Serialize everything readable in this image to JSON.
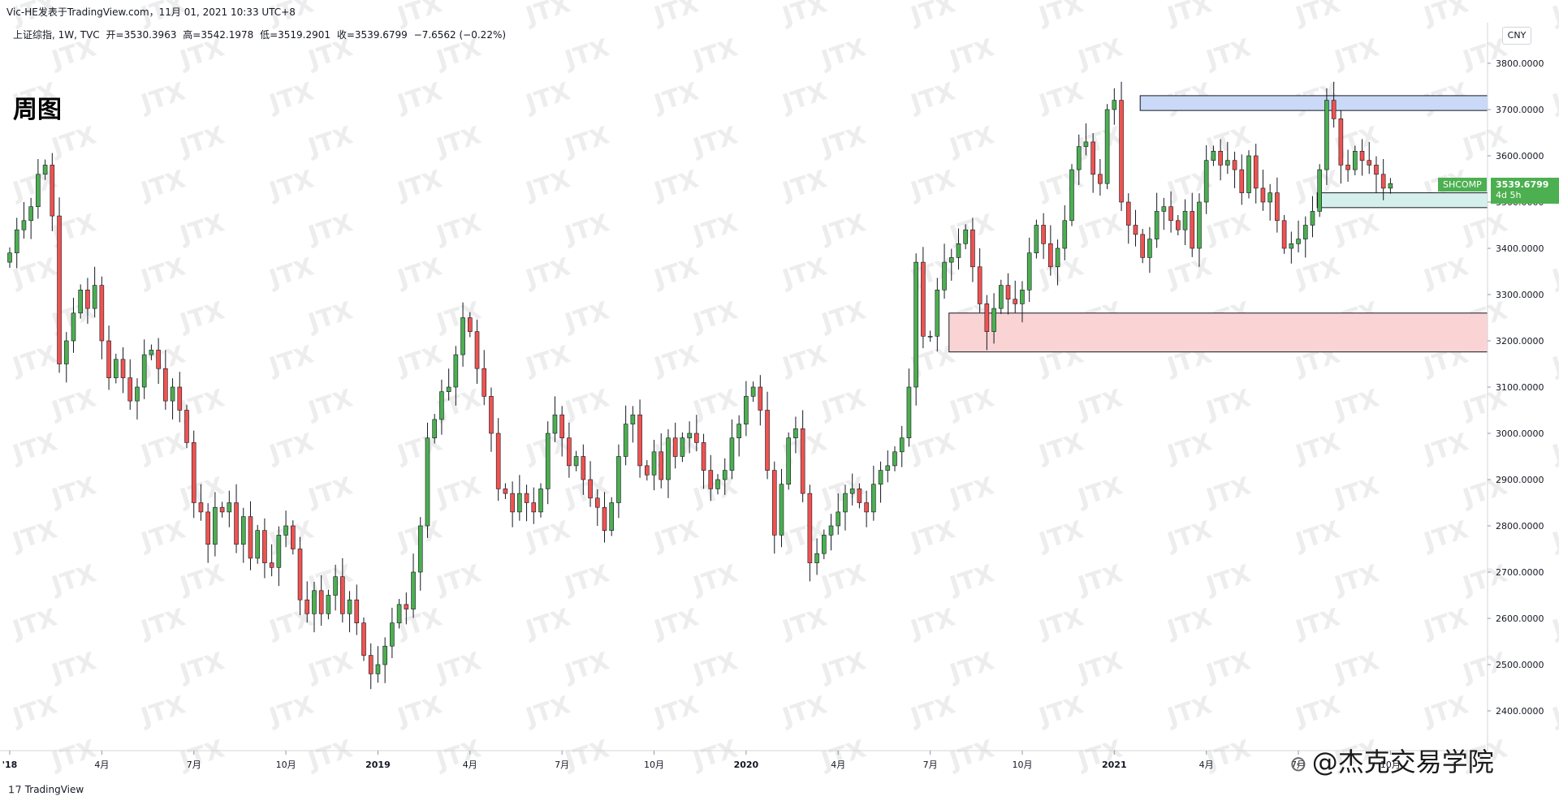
{
  "header": {
    "publisher": "Vic-HE发表于TradingView.com，11月 01, 2021 10:33 UTC+8"
  },
  "legend": {
    "symbol": "上证综指, 1W, TVC",
    "open": "开=3530.3963",
    "high": "高=3542.1978",
    "low": "低=3519.2901",
    "close": "收=3539.6799",
    "change": "−7.6562 (−0.22%)"
  },
  "title": "周图",
  "currency": "CNY",
  "symbol_tag": "SHCOMP",
  "price_tag": {
    "price": "3539.6799",
    "countdown": "4d 5h"
  },
  "branding": {
    "tv": "TradingView",
    "credit": "@杰克交易学院",
    "watermark": "JTX"
  },
  "colors": {
    "up": "#4caf50",
    "down": "#ef5350",
    "wick": "#131722",
    "supply_zone": "#c9d9f7",
    "demand_zone": "#fad4d4",
    "support_zone": "#d5f0ec"
  },
  "chart_data": {
    "type": "candlestick",
    "timeframe": "1W",
    "ylim": [
      2290,
      3860
    ],
    "y_ticks": [
      2400,
      2500,
      2600,
      2700,
      2800,
      2900,
      3000,
      3100,
      3200,
      3300,
      3400,
      3500,
      3600,
      3700,
      3800
    ],
    "y_tick_labels": [
      "2400.0000",
      "2500.0000",
      "2600.0000",
      "2700.0000",
      "2800.0000",
      "2900.0000",
      "3000.0000",
      "3100.0000",
      "3200.0000",
      "3300.0000",
      "3400.0000",
      "3500.0000",
      "3600.0000",
      "3700.0000",
      "3800.0000"
    ],
    "x_ticks": [
      {
        "label": "'18",
        "bar": 0
      },
      {
        "label": "4月",
        "bar": 13
      },
      {
        "label": "7月",
        "bar": 26
      },
      {
        "label": "10月",
        "bar": 39
      },
      {
        "label": "2019",
        "bar": 52
      },
      {
        "label": "4月",
        "bar": 65
      },
      {
        "label": "7月",
        "bar": 78
      },
      {
        "label": "10月",
        "bar": 91
      },
      {
        "label": "2020",
        "bar": 104
      },
      {
        "label": "4月",
        "bar": 117
      },
      {
        "label": "7月",
        "bar": 130
      },
      {
        "label": "10月",
        "bar": 143
      },
      {
        "label": "2021",
        "bar": 156
      },
      {
        "label": "4月",
        "bar": 169
      },
      {
        "label": "7月",
        "bar": 182
      },
      {
        "label": "10月",
        "bar": 195
      }
    ],
    "closes": [
      3390,
      3440,
      3460,
      3490,
      3560,
      3580,
      3470,
      3150,
      3200,
      3260,
      3310,
      3270,
      3320,
      3200,
      3120,
      3160,
      3120,
      3070,
      3100,
      3170,
      3180,
      3140,
      3070,
      3100,
      3050,
      2980,
      2850,
      2830,
      2760,
      2840,
      2830,
      2850,
      2760,
      2820,
      2730,
      2790,
      2720,
      2710,
      2780,
      2800,
      2750,
      2640,
      2610,
      2660,
      2610,
      2650,
      2690,
      2610,
      2640,
      2590,
      2520,
      2480,
      2500,
      2540,
      2590,
      2630,
      2620,
      2700,
      2800,
      2990,
      3030,
      3090,
      3100,
      3170,
      3250,
      3220,
      3140,
      3080,
      3000,
      2880,
      2870,
      2830,
      2870,
      2850,
      2830,
      2880,
      3000,
      3040,
      2990,
      2930,
      2950,
      2900,
      2860,
      2840,
      2790,
      2850,
      2950,
      3020,
      3040,
      2930,
      2910,
      2960,
      2900,
      2990,
      2950,
      2990,
      3000,
      2980,
      2920,
      2880,
      2900,
      2920,
      2990,
      3020,
      3080,
      3100,
      3050,
      2920,
      2780,
      2890,
      2990,
      3010,
      2870,
      2720,
      2740,
      2780,
      2800,
      2830,
      2870,
      2880,
      2850,
      2830,
      2890,
      2920,
      2930,
      2960,
      2990,
      3100,
      3370,
      3210,
      3210,
      3310,
      3370,
      3380,
      3410,
      3440,
      3360,
      3280,
      3220,
      3270,
      3320,
      3290,
      3280,
      3310,
      3390,
      3450,
      3410,
      3360,
      3400,
      3460,
      3570,
      3620,
      3630,
      3560,
      3540,
      3700,
      3720,
      3500,
      3450,
      3430,
      3380,
      3420,
      3480,
      3490,
      3460,
      3440,
      3480,
      3400,
      3500,
      3590,
      3610,
      3580,
      3590,
      3570,
      3520,
      3600,
      3530,
      3500,
      3520,
      3460,
      3400,
      3410,
      3420,
      3450,
      3480,
      3570,
      3720,
      3680,
      3580,
      3570,
      3610,
      3590,
      3580,
      3560,
      3530,
      3540
    ],
    "ranges": [
      {
        "name": "supply-zone",
        "from_bar": 160,
        "y_low": 3698,
        "y_high": 3730
      },
      {
        "name": "demand-zone",
        "from_bar": 133,
        "y_low": 3176,
        "y_high": 3260
      },
      {
        "name": "support-zone",
        "from_bar": 185,
        "y_low": 3488,
        "y_high": 3520
      }
    ]
  }
}
